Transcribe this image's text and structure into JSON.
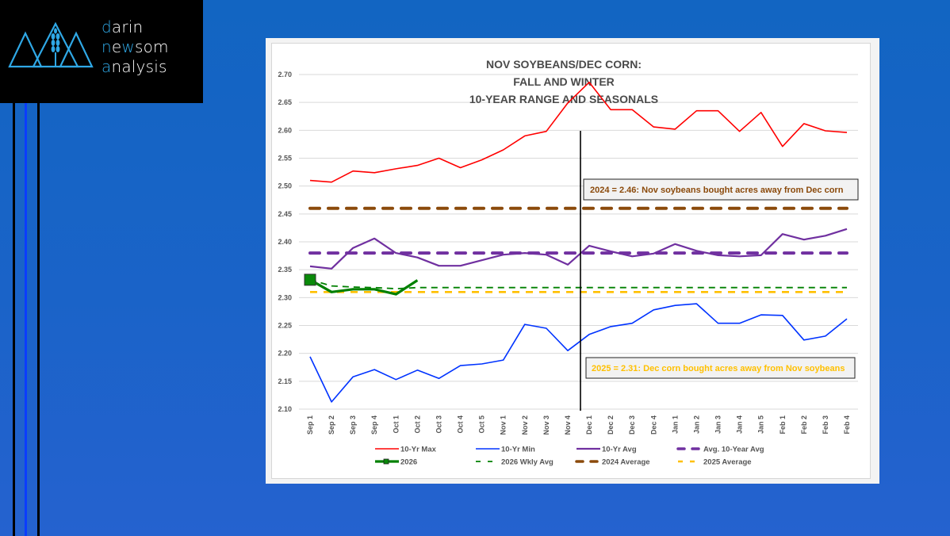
{
  "brand": {
    "lines": [
      {
        "accent": "d",
        "rest": "arin"
      },
      {
        "accent": "n",
        "mid": "e",
        "accent2": "w",
        "rest": "som"
      },
      {
        "accent": "a",
        "rest": "nalysis"
      }
    ],
    "full_text": "darin newsom analysis",
    "accent_color": "#2fa8e6",
    "icon": "wheat-mountains-icon"
  },
  "colors": {
    "background": "#1a63c8",
    "max": "#ff0000",
    "min": "#0033ff",
    "avg": "#7030a0",
    "avg_of_avg": "#7030a0",
    "y2026": "#008000",
    "wkly_avg_2026": "#008000",
    "avg_2024": "#8b4a0b",
    "avg_2025": "#ffc000",
    "marker_divider": "#000000"
  },
  "chart_data": {
    "type": "line",
    "title": [
      "NOV SOYBEANS/DEC CORN:",
      "FALL AND WINTER",
      "10-YEAR RANGE AND SEASONALS"
    ],
    "xlabel": "",
    "ylabel": "",
    "ylim": [
      2.1,
      2.7
    ],
    "yticks": [
      "2.10",
      "2.15",
      "2.20",
      "2.25",
      "2.30",
      "2.35",
      "2.40",
      "2.45",
      "2.50",
      "2.55",
      "2.60",
      "2.65",
      "2.70"
    ],
    "grid": true,
    "legend_position": "bottom",
    "categories": [
      "Sep 1",
      "Sep 2",
      "Sep 3",
      "Sep 4",
      "Oct 1",
      "Oct 2",
      "Oct 3",
      "Oct 4",
      "Oct 5",
      "Nov 1",
      "Nov 2",
      "Nov 3",
      "Nov 4",
      "Dec 1",
      "Dec 2",
      "Dec 3",
      "Dec 4",
      "Jan 1",
      "Jan 2",
      "Jan 3",
      "Jan 4",
      "Jan 5",
      "Feb 1",
      "Feb 2",
      "Feb 3",
      "Feb 4"
    ],
    "vertical_marker_between": [
      "Nov 4",
      "Dec 1"
    ],
    "series": [
      {
        "name": "10-Yr Max",
        "style": "solid",
        "values": [
          2.51,
          2.507,
          2.527,
          2.524,
          2.531,
          2.537,
          2.55,
          2.533,
          2.547,
          2.565,
          2.59,
          2.598,
          2.649,
          2.686,
          2.637,
          2.637,
          2.606,
          2.602,
          2.635,
          2.635,
          2.598,
          2.632,
          2.571,
          2.612,
          2.599,
          2.596
        ]
      },
      {
        "name": "10-Yr Min",
        "style": "solid",
        "values": [
          2.194,
          2.113,
          2.158,
          2.171,
          2.153,
          2.17,
          2.155,
          2.178,
          2.181,
          2.188,
          2.252,
          2.245,
          2.205,
          2.234,
          2.248,
          2.254,
          2.278,
          2.286,
          2.289,
          2.254,
          2.254,
          2.269,
          2.268,
          2.224,
          2.231,
          2.262
        ]
      },
      {
        "name": "10-Yr Avg",
        "style": "solid",
        "values": [
          2.356,
          2.352,
          2.389,
          2.406,
          2.38,
          2.372,
          2.357,
          2.357,
          2.367,
          2.377,
          2.38,
          2.377,
          2.359,
          2.393,
          2.383,
          2.374,
          2.379,
          2.396,
          2.384,
          2.376,
          2.374,
          2.376,
          2.414,
          2.404,
          2.411,
          2.423
        ]
      },
      {
        "name": "Avg. 10-Year Avg",
        "style": "dash-thick",
        "values": [
          2.38,
          2.38,
          2.38,
          2.38,
          2.38,
          2.38,
          2.38,
          2.38,
          2.38,
          2.38,
          2.38,
          2.38,
          2.38,
          2.38,
          2.38,
          2.38,
          2.38,
          2.38,
          2.38,
          2.38,
          2.38,
          2.38,
          2.38,
          2.38,
          2.38,
          2.38
        ]
      },
      {
        "name": "2026",
        "style": "solid-thick-marker",
        "values": [
          2.332,
          2.31,
          2.315,
          2.315,
          2.306,
          2.331
        ]
      },
      {
        "name": "2026 Wkly Avg",
        "style": "dash-thin",
        "values": [
          2.332,
          2.321,
          2.319,
          2.318,
          2.316,
          2.318,
          2.318,
          2.318,
          2.318,
          2.318,
          2.318,
          2.318,
          2.318,
          2.318,
          2.318,
          2.318,
          2.318,
          2.318,
          2.318,
          2.318,
          2.318,
          2.318,
          2.318,
          2.318,
          2.318,
          2.318
        ]
      },
      {
        "name": "2024 Average",
        "style": "dash-thick",
        "values": [
          2.46,
          2.46,
          2.46,
          2.46,
          2.46,
          2.46,
          2.46,
          2.46,
          2.46,
          2.46,
          2.46,
          2.46,
          2.46,
          2.46,
          2.46,
          2.46,
          2.46,
          2.46,
          2.46,
          2.46,
          2.46,
          2.46,
          2.46,
          2.46,
          2.46,
          2.46
        ]
      },
      {
        "name": "2025 Average",
        "style": "dash",
        "values": [
          2.31,
          2.31,
          2.31,
          2.31,
          2.31,
          2.31,
          2.31,
          2.31,
          2.31,
          2.31,
          2.31,
          2.31,
          2.31,
          2.31,
          2.31,
          2.31,
          2.31,
          2.31,
          2.31,
          2.31,
          2.31,
          2.31,
          2.31,
          2.31,
          2.31,
          2.31
        ]
      }
    ],
    "annotations": [
      {
        "text": "2024 = 2.46: Nov soybeans bought acres away from Dec corn",
        "color": "#8b4a0b"
      },
      {
        "text": "2025 = 2.31: Dec corn bought acres away from Nov soybeans",
        "color": "#ffc000"
      }
    ],
    "legend": [
      [
        "10-Yr Max",
        "10-Yr Min",
        "10-Yr Avg",
        "Avg. 10-Year Avg"
      ],
      [
        "2026",
        "2026 Wkly Avg",
        "2024 Average",
        "2025 Average"
      ]
    ]
  }
}
